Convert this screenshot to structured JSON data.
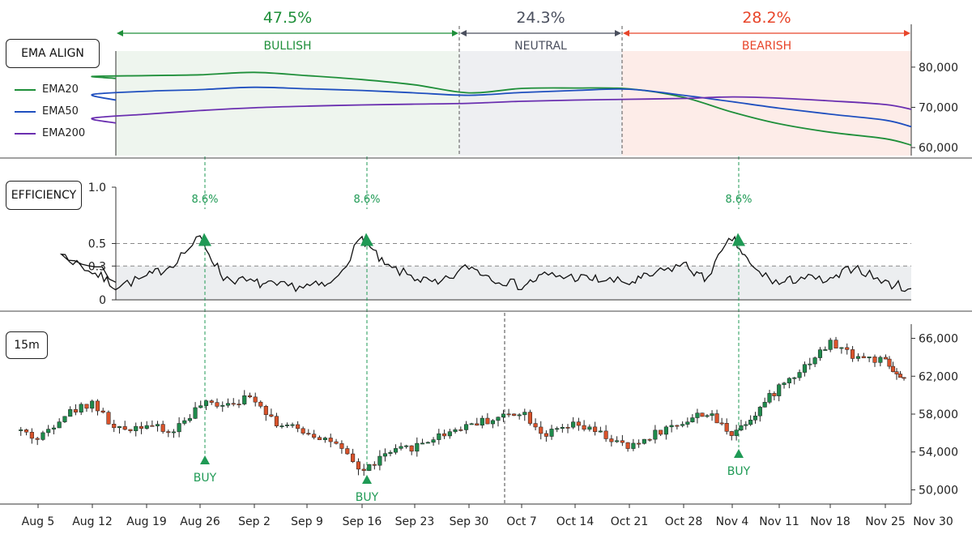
{
  "panels": {
    "ema": {
      "label": "EMA ALIGN",
      "legend": [
        {
          "name": "EMA20",
          "color": "#1f8f3a"
        },
        {
          "name": "EMA50",
          "color": "#1f4fbf"
        },
        {
          "name": "EMA200",
          "color": "#6a2fb0"
        }
      ],
      "regimes": [
        {
          "pct": "47.5%",
          "label": "BULLISH",
          "color": "#1f8f3a",
          "fill": "#eef5ee"
        },
        {
          "pct": "24.3%",
          "label": "NEUTRAL",
          "color": "#4a4f5e",
          "fill": "#eeeff2"
        },
        {
          "pct": "28.2%",
          "label": "BEARISH",
          "color": "#e8452a",
          "fill": "#fdece8"
        }
      ],
      "yticks": [
        "80,000",
        "70,000",
        "60,000"
      ]
    },
    "efficiency": {
      "label": "EFFICIENCY",
      "yticks": [
        "1.0",
        "0.5",
        "0.3",
        "0"
      ],
      "peak_label": "8.6%"
    },
    "price": {
      "label": "15m",
      "yticks": [
        "66,000",
        "62,000",
        "58,000",
        "54,000",
        "50,000"
      ],
      "signal_label": "BUY"
    }
  },
  "xaxis": {
    "ticks": [
      "Aug 5",
      "Aug 12",
      "Aug 19",
      "Aug 26",
      "Sep 2",
      "Sep 9",
      "Sep 16",
      "Sep 23",
      "Sep 30",
      "Oct 7",
      "Oct 14",
      "Oct 21",
      "Oct 28",
      "Nov 4",
      "Nov 11",
      "Nov 18",
      "Nov 25",
      "Nov 30"
    ]
  },
  "colors": {
    "up": "#1f8a4c",
    "down": "#d9532b",
    "signal": "#1f9a55",
    "efficiency_line": "#111111",
    "efficiency_band": "#eceef0"
  },
  "chart_data": [
    {
      "type": "line",
      "title": "EMA ALIGN",
      "x": [
        "Aug 5",
        "Aug 12",
        "Aug 19",
        "Aug 26",
        "Sep 2",
        "Sep 9",
        "Sep 16",
        "Sep 23",
        "Sep 30",
        "Oct 7",
        "Oct 14",
        "Oct 21",
        "Oct 28",
        "Nov 4",
        "Nov 11",
        "Nov 18",
        "Nov 25",
        "Nov 30"
      ],
      "series": [
        {
          "name": "EMA20",
          "values": [
            77200,
            77700,
            77900,
            78100,
            78700,
            77900,
            76900,
            75600,
            73600,
            74700,
            74800,
            74600,
            72500,
            68800,
            65900,
            63800,
            62200,
            60600
          ]
        },
        {
          "name": "EMA50",
          "values": [
            71800,
            73200,
            74000,
            74400,
            75000,
            74600,
            74200,
            73600,
            73000,
            73700,
            74200,
            74500,
            73000,
            71400,
            69800,
            68300,
            66800,
            65200
          ]
        },
        {
          "name": "EMA200",
          "values": [
            66100,
            67300,
            68300,
            69200,
            69900,
            70300,
            70600,
            70800,
            71000,
            71500,
            71800,
            72000,
            72200,
            72600,
            72300,
            71600,
            70700,
            69500
          ]
        }
      ],
      "regimes": [
        {
          "label": "BULLISH",
          "share": "47.5%",
          "from": "Aug 5",
          "to": "Sep 30"
        },
        {
          "label": "NEUTRAL",
          "share": "24.3%",
          "from": "Sep 30",
          "to": "Oct 21"
        },
        {
          "label": "BEARISH",
          "share": "28.2%",
          "from": "Oct 21",
          "to": "Nov 30"
        }
      ],
      "ylim": [
        58000,
        84000
      ]
    },
    {
      "type": "line",
      "title": "EFFICIENCY",
      "x": [
        "Aug 5",
        "Aug 8",
        "Aug 12",
        "Aug 15",
        "Aug 19",
        "Aug 22",
        "Aug 26",
        "Aug 29",
        "Sep 2",
        "Sep 5",
        "Sep 9",
        "Sep 12",
        "Sep 16",
        "Sep 19",
        "Sep 23",
        "Sep 26",
        "Sep 30",
        "Oct 3",
        "Oct 7",
        "Oct 10",
        "Oct 14",
        "Oct 17",
        "Oct 21",
        "Oct 24",
        "Oct 28",
        "Oct 31",
        "Nov 4",
        "Nov 7",
        "Nov 11",
        "Nov 14",
        "Nov 18",
        "Nov 21",
        "Nov 25",
        "Nov 30"
      ],
      "series": [
        {
          "name": "",
          "values": [
            0.2,
            0.4,
            0.25,
            0.12,
            0.2,
            0.3,
            0.55,
            0.2,
            0.15,
            0.12,
            0.12,
            0.13,
            0.55,
            0.3,
            0.2,
            0.13,
            0.3,
            0.2,
            0.12,
            0.22,
            0.2,
            0.18,
            0.15,
            0.22,
            0.32,
            0.18,
            0.55,
            0.28,
            0.14,
            0.2,
            0.16,
            0.3,
            0.15,
            0.1
          ]
        }
      ],
      "peaks": [
        {
          "x": "Aug 26",
          "label": "8.6%"
        },
        {
          "x": "Sep 16",
          "label": "8.6%"
        },
        {
          "x": "Nov 4",
          "label": "8.6%"
        }
      ],
      "reference_lines": [
        0.5,
        0.3
      ],
      "ylim": [
        0,
        1.0
      ]
    },
    {
      "type": "candlestick",
      "title": "15m",
      "x": [
        "Aug 2",
        "Aug 5",
        "Aug 8",
        "Aug 12",
        "Aug 15",
        "Aug 19",
        "Aug 22",
        "Aug 26",
        "Aug 29",
        "Sep 2",
        "Sep 5",
        "Sep 9",
        "Sep 12",
        "Sep 16",
        "Sep 19",
        "Sep 23",
        "Sep 26",
        "Sep 30",
        "Oct 3",
        "Oct 7",
        "Oct 10",
        "Oct 14",
        "Oct 17",
        "Oct 21",
        "Oct 24",
        "Oct 28",
        "Oct 31",
        "Nov 4",
        "Nov 7",
        "Nov 11",
        "Nov 14",
        "Nov 18",
        "Nov 21",
        "Nov 25",
        "Nov 28"
      ],
      "close": [
        56600,
        55300,
        57800,
        59300,
        56200,
        57000,
        55900,
        58900,
        59200,
        59800,
        57000,
        56100,
        55200,
        51900,
        53700,
        54600,
        55700,
        57000,
        57400,
        58400,
        55800,
        56800,
        56000,
        54300,
        55900,
        57200,
        58200,
        56000,
        57800,
        60900,
        62800,
        65500,
        64200,
        63500,
        61500
      ],
      "signals": [
        {
          "x": "Aug 26",
          "label": "BUY"
        },
        {
          "x": "Sep 16",
          "label": "BUY"
        },
        {
          "x": "Nov 4",
          "label": "BUY"
        }
      ],
      "ylim": [
        48500,
        67500
      ]
    }
  ]
}
